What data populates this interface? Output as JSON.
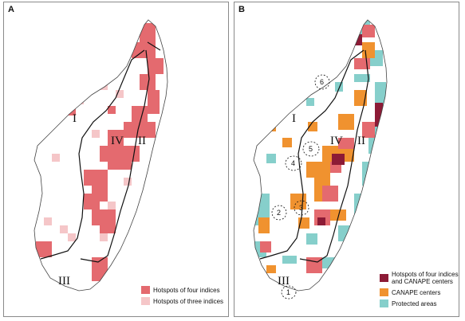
{
  "panels": {
    "a": {
      "label": "A"
    },
    "b": {
      "label": "B"
    }
  },
  "regions": {
    "I": "I",
    "II": "II",
    "III": "III",
    "IV": "IV"
  },
  "sites": [
    "1",
    "2",
    "3",
    "4",
    "5",
    "6"
  ],
  "legend_a": [
    {
      "label": "Hotspots of four indices",
      "color": "#e46a6f"
    },
    {
      "label": "Hotspots of three indices",
      "color": "#f5c6c8"
    }
  ],
  "legend_b": [
    {
      "label": "Hotspots of four indices and CANAPE centers",
      "color": "#8c1b36"
    },
    {
      "label": "CANAPE centers",
      "color": "#f0922f"
    },
    {
      "label": "Protected areas",
      "color": "#86cfcb"
    }
  ]
}
